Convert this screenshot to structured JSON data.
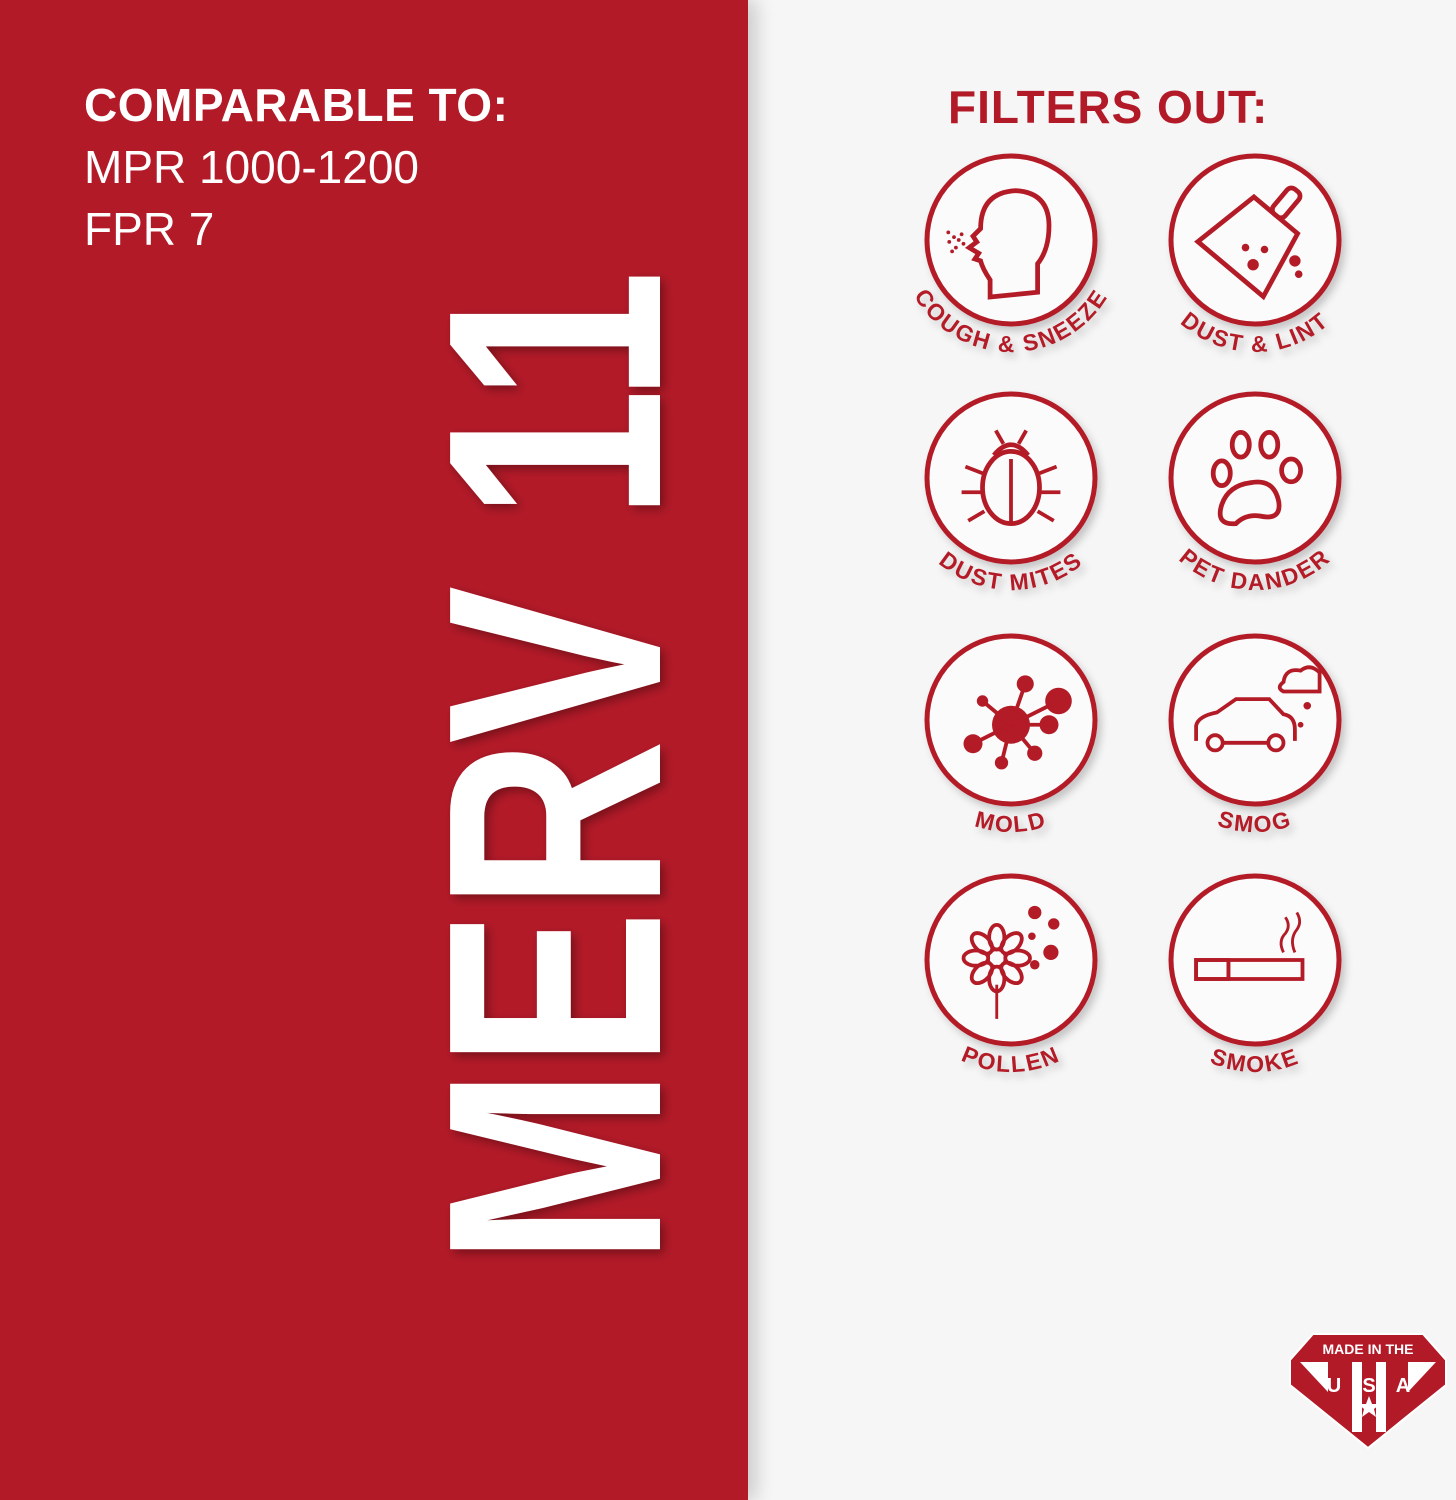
{
  "comparable": {
    "title": "COMPARABLE TO:",
    "lines": [
      "MPR 1000-1200",
      "FPR 7"
    ]
  },
  "rating": "MERV 11",
  "filters": {
    "title": "FILTERS OUT:",
    "items": [
      {
        "label": "COUGH & SNEEZE",
        "icon": "head-sneeze-icon"
      },
      {
        "label": "DUST & LINT",
        "icon": "dustpan-icon"
      },
      {
        "label": "DUST MITES",
        "icon": "bug-icon"
      },
      {
        "label": "PET DANDER",
        "icon": "paw-icon"
      },
      {
        "label": "MOLD",
        "icon": "mold-spore-icon"
      },
      {
        "label": "SMOG",
        "icon": "car-smog-icon"
      },
      {
        "label": "POLLEN",
        "icon": "flower-icon"
      },
      {
        "label": "SMOKE",
        "icon": "cigarette-icon"
      }
    ]
  },
  "badge": {
    "top": "MADE IN THE",
    "letters": [
      "U",
      "S",
      "A"
    ]
  },
  "colors": {
    "brand_red": "#b31a28",
    "background": "#f6f6f6",
    "text_light": "#ffffff"
  }
}
